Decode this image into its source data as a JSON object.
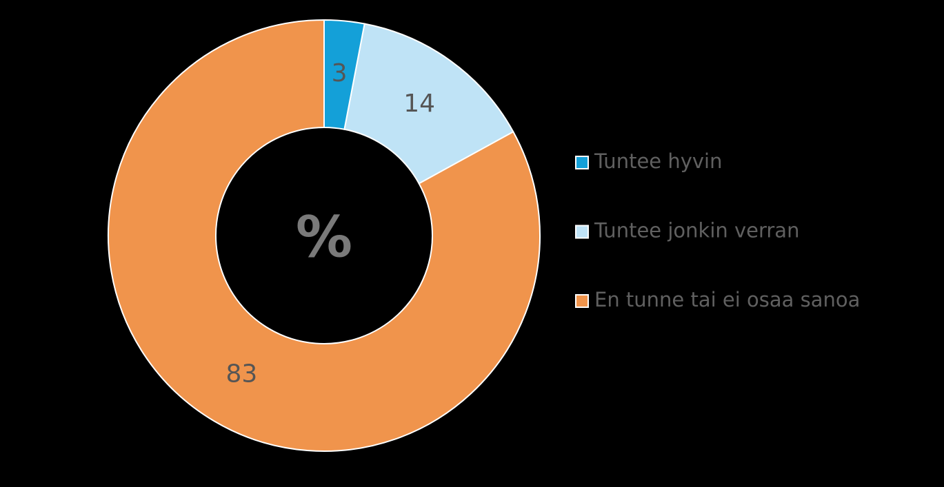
{
  "chart_data": {
    "type": "donut",
    "center_label": "%",
    "categories": [
      "Tuntee hyvin",
      "Tuntee jonkin verran",
      "En tunne tai ei osaa sanoa"
    ],
    "values": [
      3,
      14,
      83
    ],
    "colors": [
      "#14a0d8",
      "#bfe3f6",
      "#f0944c"
    ],
    "legend": "right"
  }
}
